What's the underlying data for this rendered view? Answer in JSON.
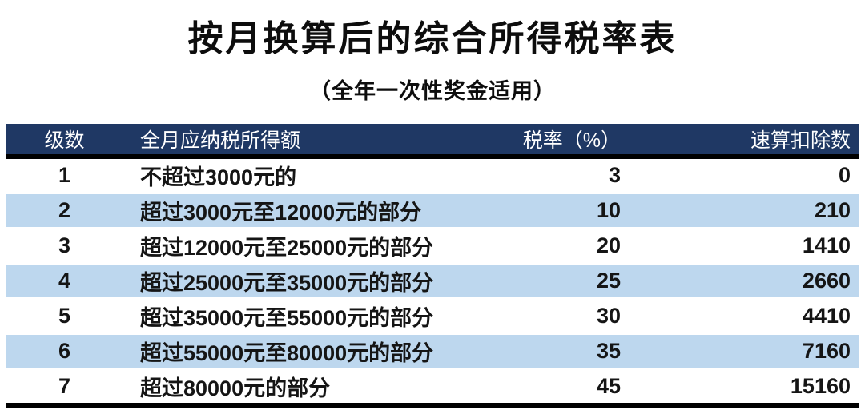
{
  "page": {
    "title": "按月换算后的综合所得税率表",
    "subtitle": "（全年一次性奖金适用）"
  },
  "table": {
    "headers": [
      "级数",
      "全月应纳税所得额",
      "税率（%）",
      "速算扣除数"
    ],
    "rows": [
      {
        "level": "1",
        "income": "不超过3000元的",
        "rate": "3",
        "deduction": "0"
      },
      {
        "level": "2",
        "income": "超过3000元至12000元的部分",
        "rate": "10",
        "deduction": "210"
      },
      {
        "level": "3",
        "income": "超过12000元至25000元的部分",
        "rate": "20",
        "deduction": "1410"
      },
      {
        "level": "4",
        "income": "超过25000元至35000元的部分",
        "rate": "25",
        "deduction": "2660"
      },
      {
        "level": "5",
        "income": "超过35000元至55000元的部分",
        "rate": "30",
        "deduction": "4410"
      },
      {
        "level": "6",
        "income": "超过55000元至80000元的部分",
        "rate": "35",
        "deduction": "7160"
      },
      {
        "level": "7",
        "income": "超过80000元的部分",
        "rate": "45",
        "deduction": "15160"
      }
    ]
  },
  "colors": {
    "header_bg": "#1F3864",
    "header_text": "#FFFFFF",
    "row_alt_bg": "#BDD7EE",
    "border": "#000000",
    "text": "#111111"
  }
}
